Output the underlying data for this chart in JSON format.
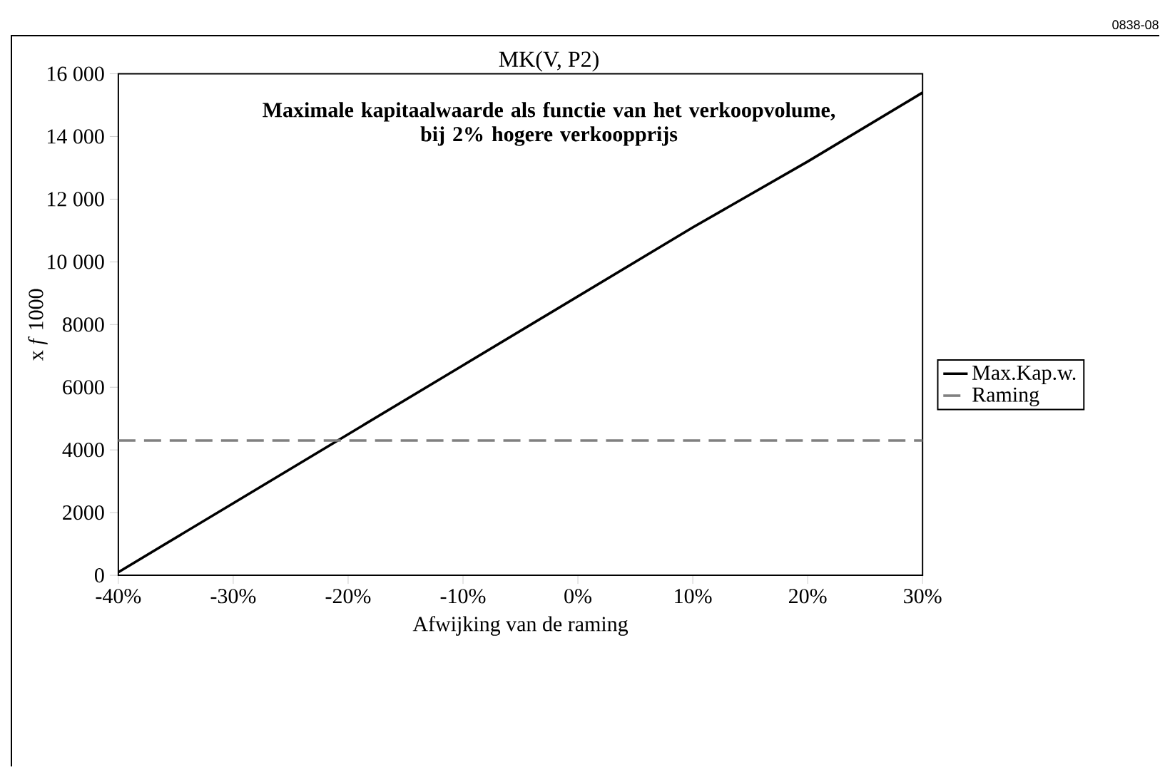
{
  "chart_data": {
    "type": "line",
    "title": "Maximale kapitaalwaarde als functie van het verkoopvolume,\nbij 2% hogere verkoopprijs",
    "subtitle": "MK(V, P2)",
    "xlabel": "Afwijking van de raming",
    "ylabel": "x *f* 1000",
    "annotations": [
      "0838-08"
    ],
    "x": [
      -40,
      -30,
      -20,
      -10,
      0,
      10,
      20,
      30
    ],
    "series": [
      {
        "name": "Max.Kap.w.",
        "color": "#000000",
        "line_style": "solid",
        "values": [
          100,
          2300,
          4500,
          6700,
          8900,
          11100,
          13200,
          15400
        ]
      },
      {
        "name": "Raming",
        "color": "#808080",
        "line_style": "dashed",
        "x": [
          -40,
          30
        ],
        "values": [
          4300,
          4300
        ]
      }
    ],
    "xlim": [
      -40,
      30
    ],
    "xticks": [
      {
        "value": -40,
        "label": "-40%"
      },
      {
        "value": -30,
        "label": "-30%"
      },
      {
        "value": -20,
        "label": "-20%"
      },
      {
        "value": -10,
        "label": "-10%"
      },
      {
        "value": 0,
        "label": "0%"
      },
      {
        "value": 10,
        "label": "10%"
      },
      {
        "value": 20,
        "label": "20%"
      },
      {
        "value": 30,
        "label": "30%"
      }
    ],
    "ylim": [
      0,
      16000
    ],
    "yticks": [
      0,
      2000,
      4000,
      6000,
      8000,
      {
        "value": 10000,
        "label": "10 000"
      },
      {
        "value": 12000,
        "label": "12 000"
      },
      {
        "value": 14000,
        "label": "14 000"
      },
      {
        "value": 16000,
        "label": "16 000"
      }
    ],
    "grid": false,
    "legend": "right",
    "marker": "none"
  }
}
